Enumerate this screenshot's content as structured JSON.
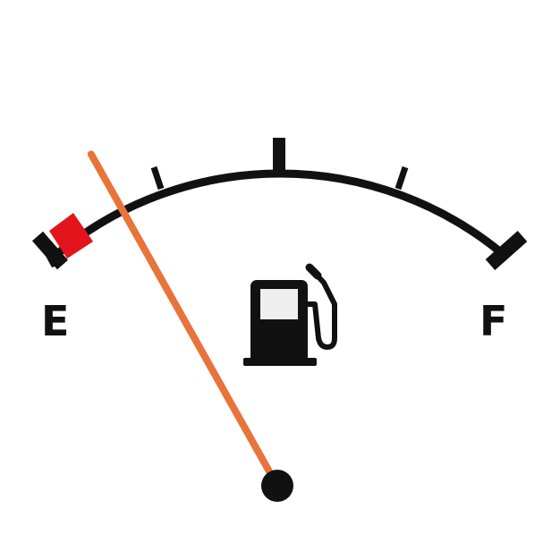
{
  "gauge": {
    "empty_label": "E",
    "full_label": "F",
    "icon": "fuel-pump-icon",
    "level": 0.05,
    "colors": {
      "outline": "#111111",
      "reserve_zone": "#e3141b",
      "needle": "#e8743b",
      "needle_hub": "#111111",
      "pump_window": "#eeeeee"
    }
  }
}
